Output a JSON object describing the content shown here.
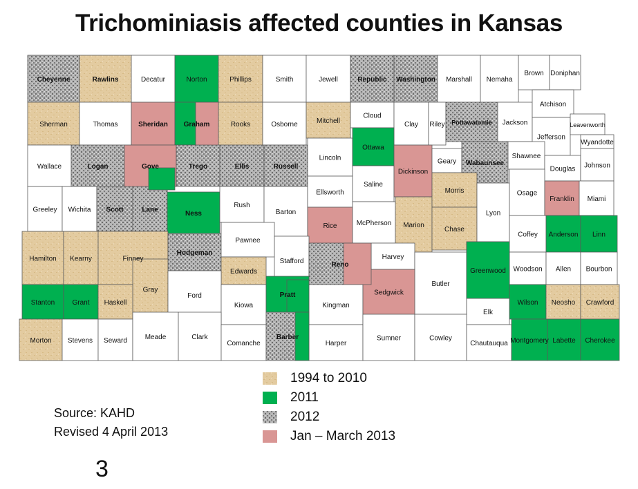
{
  "title": "Trichominiasis affected counties in Kansas",
  "colors": {
    "c1994_2010": "#e3cba0",
    "c2011": "#00b050",
    "c2012": "#a6a6a6",
    "c2013": "#d99694",
    "none": "#ffffff",
    "border": "#5a5a5a"
  },
  "legend": [
    {
      "key": "c1994_2010",
      "label": "1994 to 2010"
    },
    {
      "key": "c2011",
      "label": "2011"
    },
    {
      "key": "c2012",
      "label": "2012"
    },
    {
      "key": "c2013",
      "label": "Jan – March 2013"
    }
  ],
  "source": {
    "line1": "Source: KAHD",
    "line2": "Revised 4 April 2013"
  },
  "page_number": "3",
  "counties": [
    {
      "name": "Cheyenne",
      "status": "c2012",
      "bold": true
    },
    {
      "name": "Rawlins",
      "status": "c1994_2010",
      "bold": true
    },
    {
      "name": "Decatur",
      "status": "none"
    },
    {
      "name": "Norton",
      "status": "c2011"
    },
    {
      "name": "Phillips",
      "status": "c1994_2010"
    },
    {
      "name": "Smith",
      "status": "none"
    },
    {
      "name": "Jewell",
      "status": "none"
    },
    {
      "name": "Republic",
      "status": "c2012",
      "bold": true
    },
    {
      "name": "Washington",
      "status": "c2012",
      "bold": true
    },
    {
      "name": "Marshall",
      "status": "none"
    },
    {
      "name": "Nemaha",
      "status": "none"
    },
    {
      "name": "Brown",
      "status": "none"
    },
    {
      "name": "Doniphan",
      "status": "none"
    },
    {
      "name": "Sherman",
      "status": "c1994_2010"
    },
    {
      "name": "Thomas",
      "status": "none"
    },
    {
      "name": "Sheridan",
      "status": "c2013",
      "bold": true
    },
    {
      "name": "Graham",
      "status": "c2011",
      "bold": true
    },
    {
      "name": "Rooks",
      "status": "c1994_2010"
    },
    {
      "name": "Osborne",
      "status": "none"
    },
    {
      "name": "Mitchell",
      "status": "c1994_2010"
    },
    {
      "name": "Cloud",
      "status": "none"
    },
    {
      "name": "Clay",
      "status": "none"
    },
    {
      "name": "Riley",
      "status": "none"
    },
    {
      "name": "Pottawatomie",
      "status": "c2012",
      "bold": true
    },
    {
      "name": "Jackson",
      "status": "none"
    },
    {
      "name": "Atchison",
      "status": "none"
    },
    {
      "name": "Jefferson",
      "status": "none"
    },
    {
      "name": "Leavenworth",
      "status": "none"
    },
    {
      "name": "Wyandotte",
      "status": "none"
    },
    {
      "name": "Wallace",
      "status": "none"
    },
    {
      "name": "Logan",
      "status": "c2012",
      "bold": true
    },
    {
      "name": "Gove",
      "status": "c2013",
      "bold": true
    },
    {
      "name": "Trego",
      "status": "c2012",
      "bold": true
    },
    {
      "name": "Ellis",
      "status": "c2012",
      "bold": true
    },
    {
      "name": "Russell",
      "status": "c2012",
      "bold": true
    },
    {
      "name": "Lincoln",
      "status": "none"
    },
    {
      "name": "Ottawa",
      "status": "c2011"
    },
    {
      "name": "Saline",
      "status": "none"
    },
    {
      "name": "Dickinson",
      "status": "c2013"
    },
    {
      "name": "Geary",
      "status": "none"
    },
    {
      "name": "Wabaunsee",
      "status": "c2012",
      "bold": true
    },
    {
      "name": "Shawnee",
      "status": "none"
    },
    {
      "name": "Douglas",
      "status": "none"
    },
    {
      "name": "Johnson",
      "status": "none"
    },
    {
      "name": "Greeley",
      "status": "none"
    },
    {
      "name": "Wichita",
      "status": "none"
    },
    {
      "name": "Scott",
      "status": "c2012",
      "bold": true
    },
    {
      "name": "Lane",
      "status": "c2012",
      "bold": true
    },
    {
      "name": "Ness",
      "status": "c2011",
      "bold": true
    },
    {
      "name": "Rush",
      "status": "none"
    },
    {
      "name": "Barton",
      "status": "none"
    },
    {
      "name": "Ellsworth",
      "status": "none"
    },
    {
      "name": "Rice",
      "status": "c2013"
    },
    {
      "name": "McPherson",
      "status": "none"
    },
    {
      "name": "Marion",
      "status": "c1994_2010"
    },
    {
      "name": "Morris",
      "status": "c1994_2010"
    },
    {
      "name": "Chase",
      "status": "c1994_2010"
    },
    {
      "name": "Lyon",
      "status": "none"
    },
    {
      "name": "Osage",
      "status": "none"
    },
    {
      "name": "Franklin",
      "status": "c2013"
    },
    {
      "name": "Miami",
      "status": "none"
    },
    {
      "name": "Hamilton",
      "status": "c1994_2010"
    },
    {
      "name": "Kearny",
      "status": "c1994_2010"
    },
    {
      "name": "Finney",
      "status": "c1994_2010"
    },
    {
      "name": "Hodgeman",
      "status": "c2012",
      "bold": true
    },
    {
      "name": "Pawnee",
      "status": "none"
    },
    {
      "name": "Edwards",
      "status": "c1994_2010"
    },
    {
      "name": "Stafford",
      "status": "none"
    },
    {
      "name": "Reno",
      "status": "c2012",
      "bold": true
    },
    {
      "name": "Harvey",
      "status": "none"
    },
    {
      "name": "Butler",
      "status": "none"
    },
    {
      "name": "Greenwood",
      "status": "c2011"
    },
    {
      "name": "Coffey",
      "status": "none"
    },
    {
      "name": "Anderson",
      "status": "c2011"
    },
    {
      "name": "Linn",
      "status": "c2011"
    },
    {
      "name": "Gray",
      "status": "c1994_2010"
    },
    {
      "name": "Ford",
      "status": "none"
    },
    {
      "name": "Kiowa",
      "status": "none"
    },
    {
      "name": "Pratt",
      "status": "c2011",
      "bold": true
    },
    {
      "name": "Kingman",
      "status": "none"
    },
    {
      "name": "Sedgwick",
      "status": "c2013"
    },
    {
      "name": "Woodson",
      "status": "none"
    },
    {
      "name": "Allen",
      "status": "none"
    },
    {
      "name": "Bourbon",
      "status": "none"
    },
    {
      "name": "Stanton",
      "status": "c2011"
    },
    {
      "name": "Grant",
      "status": "c2011"
    },
    {
      "name": "Haskell",
      "status": "c1994_2010"
    },
    {
      "name": "Wilson",
      "status": "c2011"
    },
    {
      "name": "Neosho",
      "status": "c1994_2010"
    },
    {
      "name": "Crawford",
      "status": "c1994_2010"
    },
    {
      "name": "Elk",
      "status": "none"
    },
    {
      "name": "Morton",
      "status": "c1994_2010"
    },
    {
      "name": "Stevens",
      "status": "none"
    },
    {
      "name": "Seward",
      "status": "none"
    },
    {
      "name": "Meade",
      "status": "none"
    },
    {
      "name": "Clark",
      "status": "none"
    },
    {
      "name": "Comanche",
      "status": "none"
    },
    {
      "name": "Barber",
      "status": "c2012",
      "bold": true
    },
    {
      "name": "Harper",
      "status": "none"
    },
    {
      "name": "Sumner",
      "status": "none"
    },
    {
      "name": "Cowley",
      "status": "none"
    },
    {
      "name": "Chautauqua",
      "status": "none"
    },
    {
      "name": "Montgomery",
      "status": "c2011"
    },
    {
      "name": "Labette",
      "status": "c2011"
    },
    {
      "name": "Cherokee",
      "status": "c2011"
    }
  ]
}
